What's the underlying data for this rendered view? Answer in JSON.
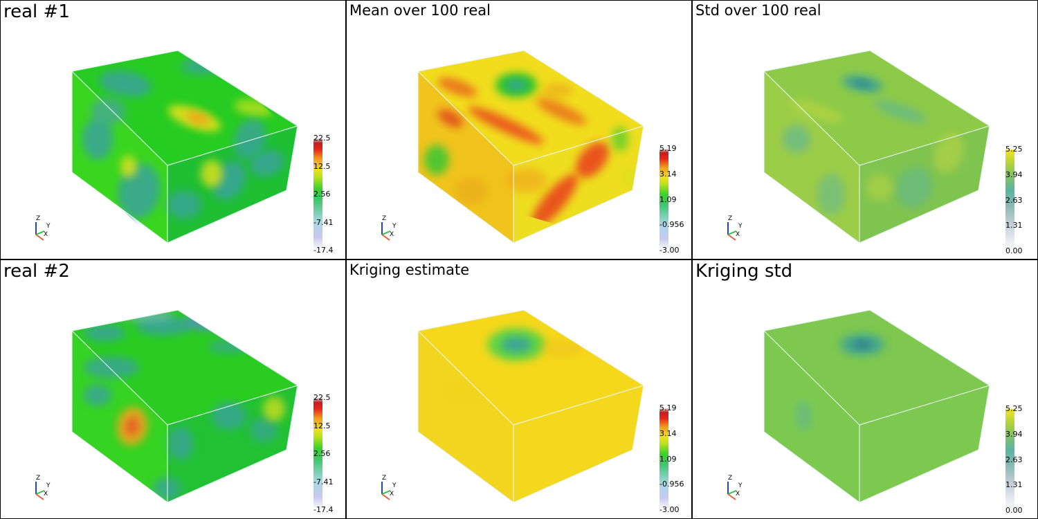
{
  "panels": [
    {
      "title": "real #1",
      "title_size": "big",
      "colorbar": {
        "map": "rainbow",
        "ticks": [
          "22.5",
          "12.5",
          "2.56",
          "-7.41",
          "-17.4"
        ]
      },
      "style": "real"
    },
    {
      "title": "Mean over 100 real",
      "title_size": "small",
      "colorbar": {
        "map": "rainbow",
        "ticks": [
          "5.19",
          "3.14",
          "1.09",
          "-0.956",
          "-3.00"
        ]
      },
      "style": "mean"
    },
    {
      "title": "Std over 100 real",
      "title_size": "small",
      "colorbar": {
        "map": "viridis",
        "ticks": [
          "5.25",
          "3.94",
          "2.63",
          "1.31",
          "0.00"
        ]
      },
      "style": "std"
    },
    {
      "title": "real #2",
      "title_size": "big",
      "colorbar": {
        "map": "rainbow",
        "ticks": [
          "22.5",
          "12.5",
          "2.56",
          "-7.41",
          "-17.4"
        ]
      },
      "style": "real2"
    },
    {
      "title": "Kriging estimate",
      "title_size": "small",
      "colorbar": {
        "map": "rainbow",
        "ticks": [
          "5.19",
          "3.14",
          "1.09",
          "-0.956",
          "-3.00"
        ]
      },
      "style": "krig"
    },
    {
      "title": "Kriging std",
      "title_size": "big",
      "colorbar": {
        "map": "viridis",
        "ticks": [
          "5.25",
          "3.94",
          "2.63",
          "1.31",
          "0.00"
        ]
      },
      "style": "krigstd"
    }
  ],
  "axes_labels": {
    "z": "Z",
    "y": "Y",
    "x": "X"
  },
  "colors": {
    "frame": "#000000",
    "edge": "#b8e6ea",
    "green": "#2ccf1f",
    "teal": "#3fa6a0",
    "yellow": "#f4df1e",
    "red": "#e8261a",
    "viridis_base": "#6ec26a"
  }
}
